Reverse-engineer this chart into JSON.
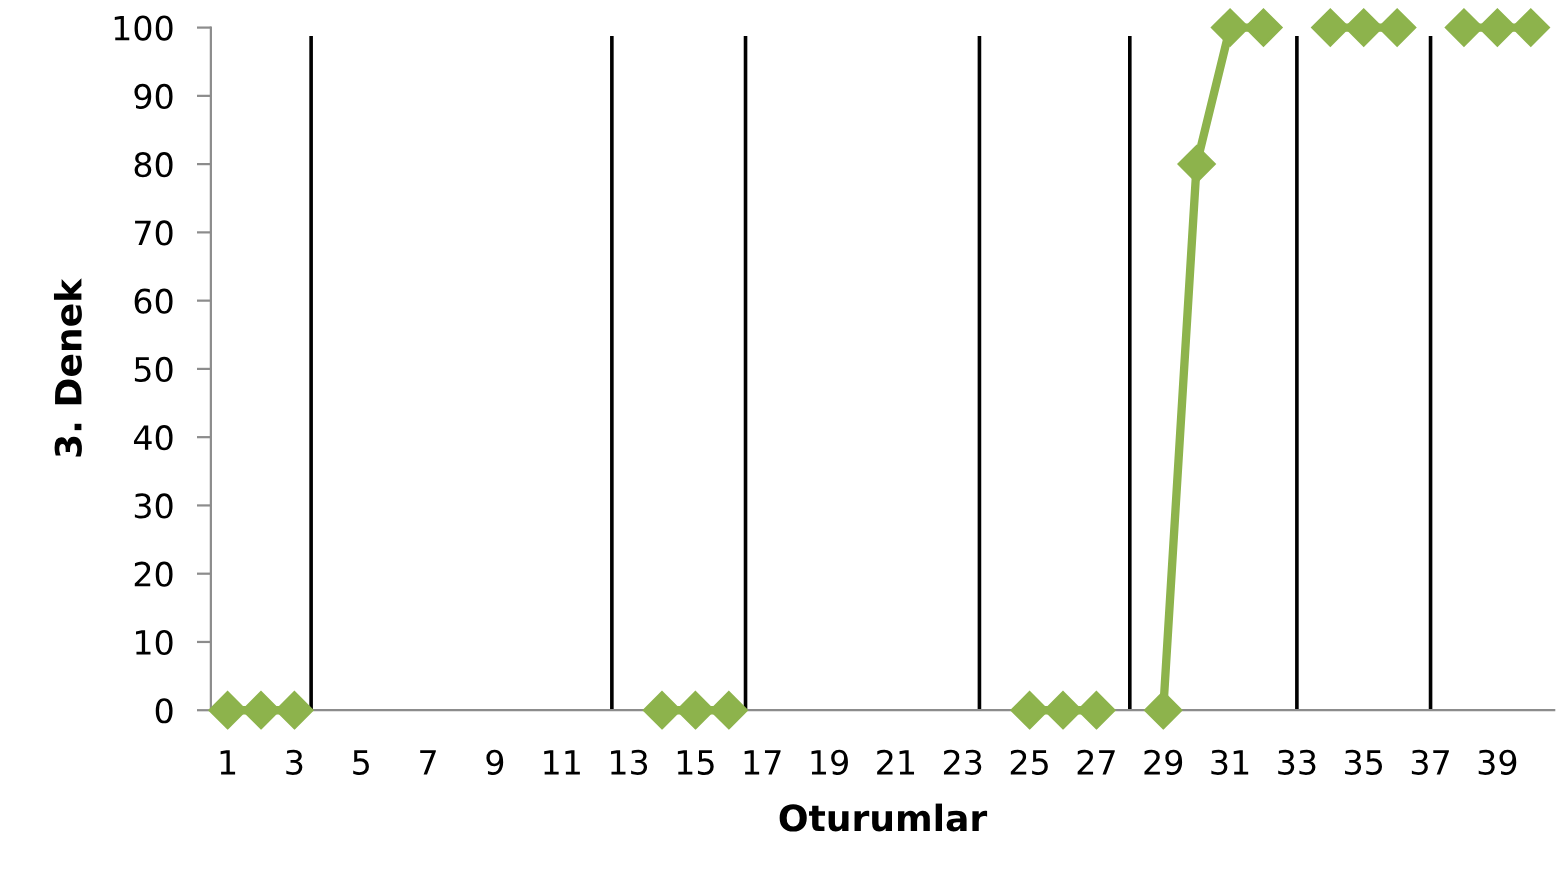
{
  "chart_data": {
    "type": "line",
    "xlabel": "Oturumlar",
    "ylabel": "3. Denek",
    "x": [
      1,
      2,
      3,
      4,
      5,
      6,
      7,
      8,
      9,
      10,
      11,
      12,
      13,
      14,
      15,
      16,
      17,
      18,
      19,
      20,
      21,
      22,
      23,
      24,
      25,
      26,
      27,
      28,
      29,
      30,
      31,
      32,
      33,
      34,
      35,
      36,
      37,
      38,
      39,
      40
    ],
    "series": [
      {
        "color": "#8db34c",
        "values": [
          0,
          0,
          0,
          null,
          null,
          null,
          null,
          null,
          null,
          null,
          null,
          null,
          null,
          0,
          0,
          0,
          null,
          null,
          null,
          null,
          null,
          null,
          null,
          null,
          0,
          0,
          0,
          null,
          0,
          80,
          100,
          100,
          null,
          100,
          100,
          100,
          null,
          100,
          100,
          100
        ]
      }
    ],
    "xlim": [
      0.5,
      40.7
    ],
    "xticks": [
      1,
      3,
      5,
      7,
      9,
      11,
      13,
      15,
      17,
      19,
      21,
      23,
      25,
      27,
      29,
      31,
      33,
      35,
      37,
      39
    ],
    "ylim": [
      0,
      100
    ],
    "yticks": [
      0,
      10,
      20,
      30,
      40,
      50,
      60,
      70,
      80,
      90,
      100
    ],
    "ref_lines": [
      {
        "axis": "x",
        "value": 3.5,
        "color": "#000000"
      },
      {
        "axis": "x",
        "value": 12.5,
        "color": "#000000"
      },
      {
        "axis": "x",
        "value": 16.5,
        "color": "#000000"
      },
      {
        "axis": "x",
        "value": 23.5,
        "color": "#000000"
      },
      {
        "axis": "x",
        "value": 28,
        "color": "#000000"
      },
      {
        "axis": "x",
        "value": 33,
        "color": "#000000"
      },
      {
        "axis": "x",
        "value": 37,
        "color": "#000000"
      }
    ],
    "marker": "diamond",
    "line_style": "solid"
  }
}
